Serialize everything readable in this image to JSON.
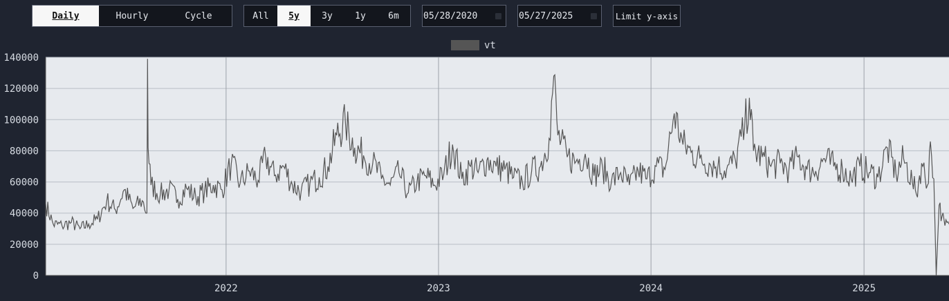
{
  "controls": {
    "resolution": [
      {
        "label": "Daily",
        "active": true
      },
      {
        "label": "Hourly",
        "active": false
      },
      {
        "label": "Cycle",
        "active": false
      }
    ],
    "range": [
      {
        "label": "All",
        "active": false
      },
      {
        "label": "5y",
        "active": true
      },
      {
        "label": "3y",
        "active": false
      },
      {
        "label": "1y",
        "active": false
      },
      {
        "label": "6m",
        "active": false
      }
    ],
    "start_date": "05/28/2020",
    "end_date": "05/27/2025",
    "limit_label": "Limit y-axis"
  },
  "colors": {
    "page_bg": "#1f2430",
    "plot_bg": "#e7eaee",
    "line": "#555555",
    "grid": "#b9bec6"
  },
  "chart_data": {
    "type": "line",
    "legend": {
      "labels": [
        "vt"
      ],
      "position": "top-center"
    },
    "x_ticks": [
      "2022",
      "2023",
      "2024",
      "2025"
    ],
    "xlim": [
      "2021-02-25",
      "2025-05-27"
    ],
    "y_ticks": [
      0,
      20000,
      40000,
      60000,
      80000,
      100000,
      120000,
      140000
    ],
    "ylim": [
      0,
      140000
    ],
    "grid": true,
    "series": [
      {
        "name": "vt",
        "x": [
          "2021-02-25",
          "2021-03-10",
          "2021-03-25",
          "2021-04-10",
          "2021-04-25",
          "2021-05-10",
          "2021-05-25",
          "2021-06-10",
          "2021-06-25",
          "2021-07-10",
          "2021-07-25",
          "2021-08-10",
          "2021-08-18",
          "2021-08-19",
          "2021-08-20",
          "2021-08-25",
          "2021-09-10",
          "2021-09-25",
          "2021-10-10",
          "2021-10-25",
          "2021-11-10",
          "2021-11-25",
          "2021-12-10",
          "2021-12-25",
          "2022-01-10",
          "2022-01-25",
          "2022-02-10",
          "2022-02-25",
          "2022-03-10",
          "2022-03-25",
          "2022-04-10",
          "2022-04-25",
          "2022-05-10",
          "2022-05-25",
          "2022-06-10",
          "2022-06-25",
          "2022-07-10",
          "2022-07-25",
          "2022-08-10",
          "2022-08-25",
          "2022-09-10",
          "2022-09-25",
          "2022-10-10",
          "2022-10-25",
          "2022-11-10",
          "2022-11-25",
          "2022-12-10",
          "2022-12-25",
          "2023-01-10",
          "2023-01-25",
          "2023-02-10",
          "2023-02-25",
          "2023-03-10",
          "2023-03-25",
          "2023-04-10",
          "2023-04-25",
          "2023-05-10",
          "2023-05-25",
          "2023-06-10",
          "2023-06-25",
          "2023-07-10",
          "2023-07-18",
          "2023-07-25",
          "2023-08-10",
          "2023-08-25",
          "2023-09-10",
          "2023-09-25",
          "2023-10-10",
          "2023-10-25",
          "2023-11-10",
          "2023-11-25",
          "2023-12-10",
          "2023-12-25",
          "2024-01-10",
          "2024-01-25",
          "2024-02-10",
          "2024-02-25",
          "2024-03-10",
          "2024-03-25",
          "2024-04-10",
          "2024-04-25",
          "2024-05-10",
          "2024-05-25",
          "2024-06-10",
          "2024-06-18",
          "2024-06-25",
          "2024-07-10",
          "2024-07-25",
          "2024-08-10",
          "2024-08-25",
          "2024-09-10",
          "2024-09-25",
          "2024-10-10",
          "2024-10-25",
          "2024-11-10",
          "2024-11-25",
          "2024-12-10",
          "2024-12-25",
          "2025-01-10",
          "2025-01-25",
          "2025-02-10",
          "2025-02-25",
          "2025-03-10",
          "2025-03-25",
          "2025-04-01",
          "2025-04-10",
          "2025-04-20",
          "2025-04-25",
          "2025-05-01",
          "2025-05-05",
          "2025-05-10",
          "2025-05-15",
          "2025-05-20",
          "2025-05-27"
        ],
        "values": [
          46000,
          33000,
          32000,
          34000,
          30000,
          33000,
          36000,
          48000,
          42000,
          55000,
          43000,
          48000,
          40000,
          139000,
          82000,
          58000,
          52000,
          55000,
          49000,
          56000,
          50000,
          54000,
          58000,
          55000,
          72000,
          59000,
          67000,
          61000,
          76000,
          64000,
          70000,
          58000,
          54000,
          59000,
          63000,
          70000,
          90000,
          98000,
          82000,
          77000,
          72000,
          62000,
          58000,
          66000,
          53000,
          60000,
          64000,
          58000,
          65000,
          84000,
          62000,
          70000,
          66000,
          74000,
          70000,
          68000,
          63000,
          60000,
          67000,
          70000,
          88000,
          128000,
          90000,
          76000,
          73000,
          78000,
          64000,
          69000,
          60000,
          66000,
          58000,
          67000,
          62000,
          70000,
          68000,
          104000,
          84000,
          79000,
          75000,
          72000,
          70000,
          68000,
          74000,
          95000,
          114000,
          80000,
          76000,
          70000,
          72000,
          68000,
          76000,
          68000,
          67000,
          75000,
          70000,
          68000,
          62000,
          70000,
          66000,
          63000,
          82000,
          65000,
          75000,
          60000,
          52000,
          72000,
          58000,
          86000,
          62000,
          0,
          45000,
          38000,
          32000,
          33000
        ]
      }
    ]
  }
}
